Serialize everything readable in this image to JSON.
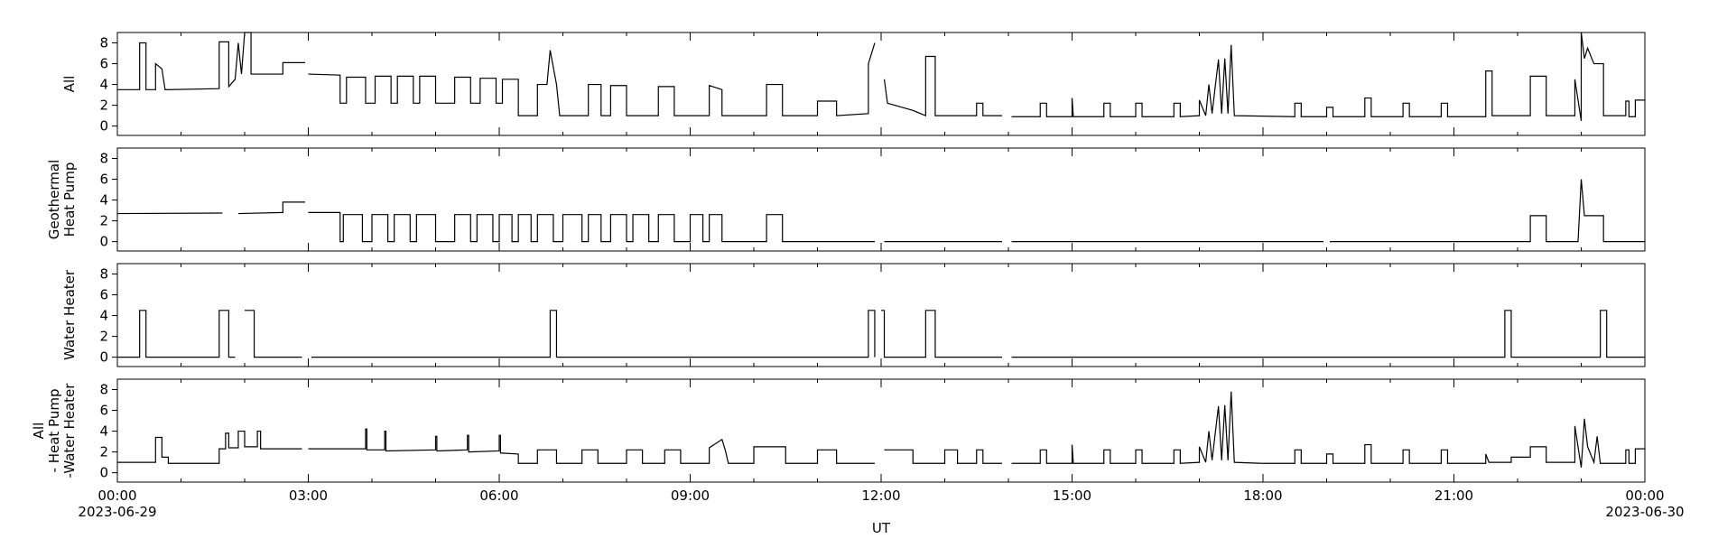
{
  "chart_data": [
    {
      "type": "line",
      "ylabel": [
        "All"
      ],
      "color": "#000000",
      "ylim": [
        -0.9,
        9
      ],
      "yticks": [
        0,
        2,
        4,
        6,
        8
      ],
      "xlim": [
        0,
        24
      ],
      "xticks": [
        0,
        3,
        6,
        9,
        12,
        15,
        18,
        21,
        24
      ],
      "x": [
        0,
        0.35,
        0.35,
        0.45,
        0.45,
        0.6,
        0.6,
        0.7,
        0.75,
        1.6,
        1.6,
        1.75,
        1.75,
        1.85,
        1.9,
        1.95,
        2.0,
        2.1,
        2.1,
        2.6,
        2.6,
        2.95,
        3.0,
        3.0,
        3.5,
        3.5,
        3.6,
        3.6,
        3.9,
        3.9,
        4.05,
        4.05,
        4.3,
        4.3,
        4.4,
        4.4,
        4.65,
        4.65,
        4.75,
        4.75,
        5.0,
        5.0,
        5.3,
        5.3,
        5.55,
        5.55,
        5.7,
        5.7,
        5.95,
        5.95,
        6.05,
        6.05,
        6.3,
        6.3,
        6.6,
        6.6,
        6.75,
        6.8,
        6.9,
        6.95,
        7.4,
        7.4,
        7.6,
        7.6,
        7.75,
        7.75,
        8.0,
        8.0,
        8.5,
        8.5,
        8.75,
        8.75,
        9.3,
        9.3,
        9.5,
        9.5,
        10.2,
        10.2,
        10.45,
        10.45,
        11.0,
        11.0,
        11.3,
        11.3,
        11.8,
        11.8,
        11.9,
        11.95,
        12.05,
        12.1,
        12.5,
        12.7,
        12.7,
        12.85,
        12.85,
        13.5,
        13.5,
        13.6,
        13.6,
        13.9,
        13.95,
        14.05,
        14.5,
        14.5,
        14.6,
        14.6,
        15.0,
        15.0,
        15.02,
        15.5,
        15.5,
        15.6,
        15.6,
        16.0,
        16.0,
        16.1,
        16.1,
        16.6,
        16.6,
        16.7,
        16.7,
        17.0,
        17.0,
        17.1,
        17.15,
        17.2,
        17.3,
        17.35,
        17.4,
        17.45,
        17.5,
        17.55,
        18.5,
        18.5,
        18.6,
        18.6,
        19.0,
        19.0,
        19.1,
        19.1,
        19.6,
        19.6,
        19.7,
        19.7,
        20.2,
        20.2,
        20.3,
        20.3,
        20.8,
        20.8,
        20.9,
        20.9,
        21.5,
        21.5,
        21.6,
        21.6,
        22.2,
        22.2,
        22.45,
        22.45,
        22.9,
        22.9,
        23.0,
        23.0,
        23.05,
        23.1,
        23.2,
        23.35,
        23.35,
        23.7,
        23.7,
        23.75,
        23.75,
        23.85,
        23.85,
        24
      ],
      "values": [
        3.5,
        3.5,
        8.0,
        8.0,
        3.5,
        3.5,
        6.0,
        5.5,
        3.5,
        3.6,
        8.1,
        8.1,
        3.8,
        4.5,
        8.0,
        5.0,
        9.0,
        9.0,
        5.0,
        5.0,
        6.1,
        6.1,
        null,
        5.0,
        4.9,
        2.2,
        2.2,
        4.7,
        4.7,
        2.2,
        2.2,
        4.8,
        4.8,
        2.2,
        2.2,
        4.8,
        4.8,
        2.2,
        2.2,
        4.8,
        4.8,
        2.2,
        2.2,
        4.7,
        4.7,
        2.2,
        2.2,
        4.6,
        4.6,
        2.2,
        2.2,
        4.5,
        4.5,
        1.0,
        1.0,
        4.0,
        4.0,
        7.3,
        4.0,
        1.0,
        1.0,
        4.0,
        4.0,
        1.0,
        1.0,
        3.9,
        3.9,
        1.0,
        1.0,
        3.8,
        3.8,
        1.0,
        1.0,
        3.9,
        3.5,
        1.0,
        1.0,
        4.0,
        4.0,
        1.0,
        1.0,
        2.4,
        2.4,
        1.0,
        1.2,
        6.0,
        8.0,
        null,
        4.5,
        2.2,
        1.5,
        1.0,
        6.7,
        6.7,
        1.0,
        1.0,
        2.2,
        2.2,
        1.0,
        1.0,
        null,
        0.9,
        0.9,
        2.2,
        2.2,
        0.9,
        0.9,
        2.7,
        0.9,
        0.9,
        2.2,
        2.2,
        0.9,
        0.9,
        2.2,
        2.2,
        0.9,
        0.9,
        2.2,
        2.2,
        0.9,
        1.0,
        2.5,
        1.0,
        4.0,
        1.2,
        6.4,
        1.2,
        6.5,
        1.2,
        7.8,
        1.0,
        0.9,
        2.2,
        2.2,
        0.9,
        0.9,
        1.8,
        1.8,
        0.9,
        0.9,
        2.7,
        2.7,
        0.9,
        0.9,
        2.2,
        2.2,
        0.9,
        0.9,
        2.2,
        2.2,
        0.9,
        0.9,
        5.3,
        5.3,
        1.0,
        1.0,
        4.8,
        4.8,
        1.0,
        1.0,
        4.5,
        0.5,
        9.0,
        6.5,
        7.5,
        6.0,
        6.0,
        1.0,
        1.0,
        2.4,
        2.4,
        0.9,
        0.9,
        2.5,
        2.5
      ]
    },
    {
      "type": "line",
      "ylabel": [
        "Geothermal",
        "Heat Pump"
      ],
      "color": "#000000",
      "ylim": [
        -0.9,
        9
      ],
      "yticks": [
        0,
        2,
        4,
        6,
        8
      ],
      "xlim": [
        0,
        24
      ],
      "xticks": [
        0,
        3,
        6,
        9,
        12,
        15,
        18,
        21,
        24
      ],
      "x": [
        0,
        1.65,
        1.7,
        1.9,
        2.6,
        2.6,
        2.95,
        3.0,
        3.0,
        3.5,
        3.5,
        3.55,
        3.55,
        3.85,
        3.85,
        4.0,
        4.0,
        4.25,
        4.25,
        4.35,
        4.35,
        4.6,
        4.6,
        4.7,
        4.7,
        5.0,
        5.0,
        5.3,
        5.3,
        5.55,
        5.55,
        5.65,
        5.65,
        5.9,
        5.9,
        6.0,
        6.0,
        6.2,
        6.2,
        6.3,
        6.3,
        6.5,
        6.5,
        6.6,
        6.6,
        6.85,
        6.85,
        7.0,
        7.0,
        7.3,
        7.3,
        7.4,
        7.4,
        7.6,
        7.6,
        7.75,
        7.75,
        8.0,
        8.0,
        8.1,
        8.1,
        8.35,
        8.35,
        8.5,
        8.5,
        8.75,
        8.75,
        9.0,
        9.0,
        9.2,
        9.2,
        9.3,
        9.3,
        9.5,
        9.5,
        10.2,
        10.2,
        10.45,
        10.45,
        11.9,
        11.95,
        12.05,
        13.9,
        13.95,
        14.05,
        18.95,
        19.0,
        19.05,
        22.2,
        22.2,
        22.45,
        22.45,
        22.95,
        23.0,
        23.05,
        23.35,
        23.35,
        24
      ],
      "values": [
        2.7,
        2.75,
        null,
        2.7,
        2.8,
        3.8,
        3.8,
        null,
        2.8,
        2.8,
        0,
        0,
        2.6,
        2.6,
        0,
        0,
        2.6,
        2.6,
        0,
        0,
        2.6,
        2.6,
        0,
        0,
        2.6,
        2.6,
        0,
        0,
        2.6,
        2.6,
        0,
        0,
        2.6,
        2.6,
        0,
        0,
        2.6,
        2.6,
        0,
        0,
        2.6,
        2.6,
        0,
        0,
        2.6,
        2.6,
        0,
        0,
        2.6,
        2.6,
        0,
        0,
        2.6,
        2.6,
        0,
        0,
        2.6,
        2.6,
        0,
        0,
        2.6,
        2.6,
        0,
        0,
        2.6,
        2.6,
        0,
        0,
        2.6,
        2.6,
        0,
        0,
        2.6,
        2.6,
        0,
        0,
        2.6,
        2.6,
        0,
        0,
        null,
        0,
        0,
        null,
        0,
        0,
        null,
        0,
        0,
        2.5,
        2.5,
        0,
        0,
        6.0,
        2.5,
        2.5,
        0,
        0
      ]
    },
    {
      "type": "line",
      "ylabel": [
        "Water Heater"
      ],
      "color": "#000000",
      "ylim": [
        -0.9,
        9
      ],
      "yticks": [
        0,
        2,
        4,
        6,
        8
      ],
      "xlim": [
        0,
        24
      ],
      "xticks": [
        0,
        3,
        6,
        9,
        12,
        15,
        18,
        21,
        24
      ],
      "x": [
        0,
        0.35,
        0.35,
        0.45,
        0.45,
        1.6,
        1.6,
        1.75,
        1.75,
        1.85,
        1.9,
        2.0,
        2.15,
        2.15,
        2.9,
        2.95,
        3.05,
        6.8,
        6.8,
        6.9,
        6.9,
        11.8,
        11.8,
        11.9,
        11.9,
        11.95,
        12.0,
        12.05,
        12.05,
        12.7,
        12.7,
        12.85,
        12.85,
        13.9,
        13.95,
        14.05,
        21.8,
        21.8,
        21.9,
        21.9,
        23.3,
        23.3,
        23.4,
        23.4,
        24
      ],
      "values": [
        0,
        0,
        4.5,
        4.5,
        0,
        0,
        4.5,
        4.5,
        0,
        0,
        null,
        4.5,
        4.5,
        0,
        0,
        null,
        0,
        0,
        4.5,
        4.5,
        0,
        0,
        4.5,
        4.5,
        0,
        null,
        4.5,
        4.5,
        0,
        0,
        4.5,
        4.5,
        0,
        0,
        null,
        0,
        0,
        4.5,
        4.5,
        0,
        0,
        4.5,
        4.5,
        0,
        0
      ]
    },
    {
      "type": "line",
      "ylabel": [
        "All",
        " - Heat Pump",
        "-Water Heater"
      ],
      "color": "#000000",
      "ylim": [
        -0.9,
        9
      ],
      "yticks": [
        0,
        2,
        4,
        6,
        8
      ],
      "xlim": [
        0,
        24
      ],
      "xticks": [
        {
          "value": 0,
          "label": "00:00"
        },
        {
          "value": 3,
          "label": "03:00"
        },
        {
          "value": 6,
          "label": "06:00"
        },
        {
          "value": 9,
          "label": "09:00"
        },
        {
          "value": 12,
          "label": "12:00"
        },
        {
          "value": 15,
          "label": "15:00"
        },
        {
          "value": 18,
          "label": "18:00"
        },
        {
          "value": 21,
          "label": "21:00"
        },
        {
          "value": 24,
          "label": "00:00"
        }
      ],
      "xtick_dates": [
        {
          "value": 0,
          "label": "2023-06-29"
        },
        {
          "value": 24,
          "label": "2023-06-30"
        }
      ],
      "xlabel": "UT",
      "x": [
        0,
        0.6,
        0.6,
        0.7,
        0.7,
        0.8,
        0.8,
        1.6,
        1.6,
        1.7,
        1.7,
        1.75,
        1.75,
        1.9,
        1.9,
        2.0,
        2.0,
        2.2,
        2.2,
        2.25,
        2.25,
        2.9,
        2.95,
        3.0,
        3.9,
        3.9,
        3.92,
        3.92,
        4.2,
        4.2,
        4.22,
        4.22,
        5.0,
        5.0,
        5.02,
        5.02,
        5.5,
        5.5,
        5.52,
        5.52,
        6.0,
        6.0,
        6.02,
        6.02,
        6.3,
        6.3,
        6.6,
        6.6,
        6.9,
        6.9,
        7.3,
        7.3,
        7.55,
        7.55,
        8.0,
        8.0,
        8.25,
        8.25,
        8.6,
        8.6,
        8.85,
        8.85,
        9.3,
        9.3,
        9.5,
        9.55,
        9.6,
        10.0,
        10.0,
        10.5,
        10.5,
        11.0,
        11.0,
        11.3,
        11.3,
        11.9,
        11.95,
        12.05,
        12.5,
        12.5,
        13.0,
        13.0,
        13.2,
        13.2,
        13.5,
        13.5,
        13.6,
        13.6,
        13.9,
        13.95,
        14.05,
        14.5,
        14.5,
        14.6,
        14.6,
        15.0,
        15.0,
        15.02,
        15.5,
        15.5,
        15.6,
        15.6,
        16.0,
        16.0,
        16.1,
        16.1,
        16.6,
        16.6,
        16.7,
        16.7,
        17.0,
        17.0,
        17.1,
        17.15,
        17.2,
        17.3,
        17.35,
        17.4,
        17.45,
        17.5,
        17.55,
        18.0,
        18.5,
        18.5,
        18.6,
        18.6,
        19.0,
        19.0,
        19.1,
        19.1,
        19.6,
        19.6,
        19.7,
        19.7,
        20.2,
        20.2,
        20.3,
        20.3,
        20.8,
        20.8,
        20.9,
        20.9,
        21.5,
        21.5,
        21.55,
        21.9,
        21.9,
        22.2,
        22.2,
        22.45,
        22.45,
        22.9,
        22.9,
        23.0,
        23.05,
        23.1,
        23.2,
        23.25,
        23.3,
        23.7,
        23.7,
        23.75,
        23.75,
        23.85,
        23.85,
        24
      ],
      "values": [
        1.0,
        1.0,
        3.4,
        3.4,
        1.5,
        1.5,
        0.9,
        0.9,
        2.3,
        2.3,
        3.8,
        3.8,
        2.4,
        2.4,
        4.0,
        4.0,
        2.5,
        2.5,
        4.0,
        4.0,
        2.3,
        2.3,
        null,
        2.3,
        2.3,
        4.2,
        4.2,
        2.2,
        2.2,
        4.0,
        4.0,
        2.1,
        2.2,
        3.5,
        3.5,
        2.1,
        2.2,
        3.6,
        3.6,
        2.0,
        2.1,
        3.6,
        3.6,
        1.9,
        1.8,
        0.9,
        0.9,
        2.2,
        2.2,
        0.9,
        0.9,
        2.2,
        2.2,
        0.9,
        0.9,
        2.2,
        2.2,
        0.9,
        0.9,
        2.2,
        2.2,
        0.9,
        0.9,
        2.4,
        3.2,
        2.2,
        0.9,
        0.9,
        2.5,
        2.5,
        0.9,
        0.9,
        2.2,
        2.2,
        0.9,
        0.9,
        null,
        2.2,
        2.2,
        0.9,
        0.9,
        2.2,
        2.2,
        0.9,
        0.9,
        2.2,
        2.2,
        0.9,
        0.9,
        null,
        0.9,
        0.9,
        2.2,
        2.2,
        0.9,
        0.9,
        2.7,
        0.9,
        0.9,
        2.2,
        2.2,
        0.9,
        0.9,
        2.2,
        2.2,
        0.9,
        0.9,
        2.2,
        2.2,
        0.9,
        1.0,
        2.5,
        1.0,
        4.0,
        1.2,
        6.4,
        1.2,
        6.5,
        1.2,
        7.8,
        1.0,
        0.9,
        0.9,
        2.2,
        2.2,
        0.9,
        0.9,
        1.8,
        1.8,
        0.9,
        0.9,
        2.7,
        2.7,
        0.9,
        0.9,
        2.2,
        2.2,
        0.9,
        0.9,
        2.2,
        2.2,
        0.9,
        0.9,
        1.8,
        1.0,
        1.0,
        1.5,
        1.5,
        2.5,
        2.5,
        1.0,
        1.0,
        4.5,
        0.5,
        5.2,
        2.5,
        1.0,
        3.5,
        0.9,
        0.9,
        2.2,
        2.2,
        0.9,
        0.9,
        2.3,
        2.3
      ]
    }
  ]
}
